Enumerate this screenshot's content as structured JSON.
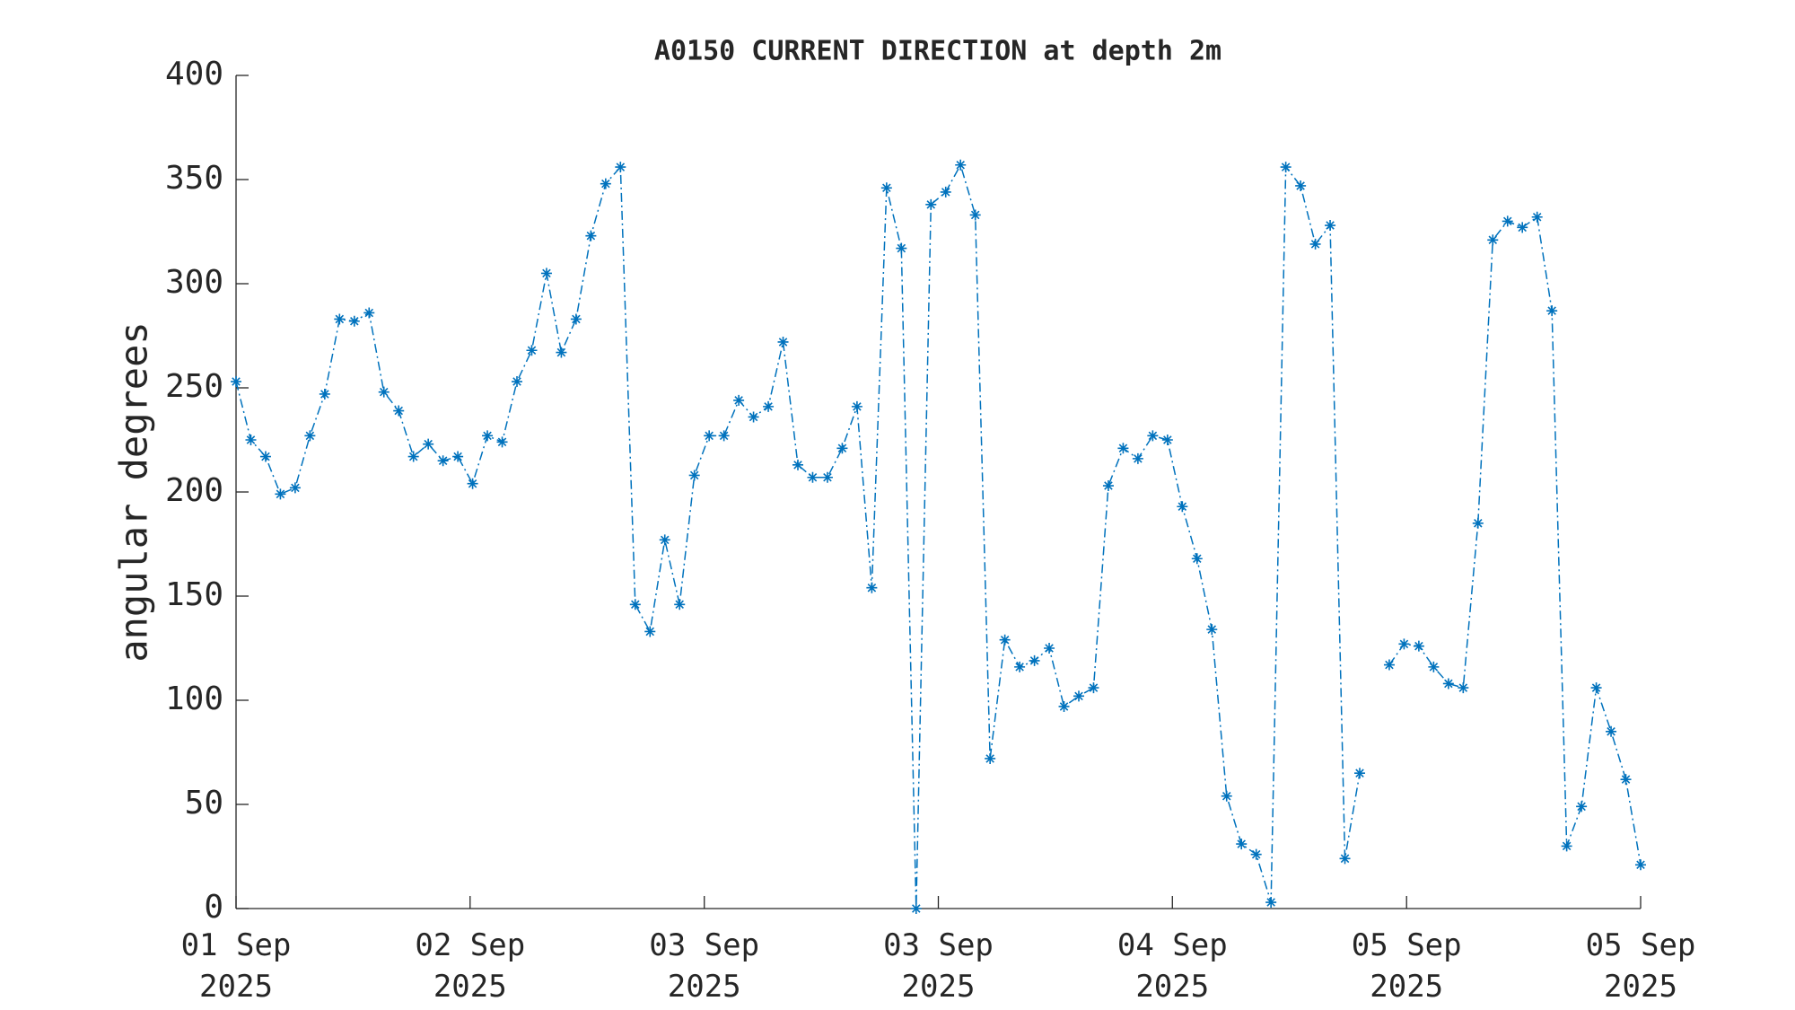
{
  "chart_data": {
    "type": "line",
    "title": "A0150 CURRENT DIRECTION at depth 2m",
    "ylabel": "angular degrees",
    "series": [
      {
        "color": "#0072BD",
        "values": [
          253,
          225,
          217,
          199,
          202,
          227,
          247,
          283,
          282,
          286,
          248,
          239,
          217,
          223,
          215,
          217,
          204,
          227,
          224,
          253,
          268,
          305,
          267,
          283,
          323,
          348,
          356,
          146,
          133,
          177,
          146,
          208,
          227,
          227,
          244,
          236,
          241,
          272,
          213,
          207,
          207,
          221,
          241,
          154,
          346,
          317,
          0,
          338,
          344,
          357,
          333,
          72,
          129,
          116,
          119,
          125,
          97,
          102,
          106,
          203,
          221,
          216,
          227,
          225,
          193,
          168,
          134,
          54,
          31,
          26,
          3,
          356,
          347,
          319,
          328,
          24,
          65,
          null,
          117,
          127,
          126,
          116,
          108,
          106,
          185,
          321,
          330,
          327,
          332,
          287,
          30,
          49,
          106,
          85,
          62,
          21
        ]
      }
    ],
    "xlim": [
      0,
      95
    ],
    "xticks": [
      {
        "value": 0,
        "label": "01 Sep 2025"
      },
      {
        "value": 15.83,
        "label": "02 Sep 2025"
      },
      {
        "value": 31.67,
        "label": "03 Sep 2025"
      },
      {
        "value": 47.5,
        "label": "03 Sep 2025"
      },
      {
        "value": 63.33,
        "label": "04 Sep 2025"
      },
      {
        "value": 79.17,
        "label": "05 Sep 2025"
      },
      {
        "value": 95,
        "label": "05 Sep 2025"
      }
    ],
    "ylim": [
      0,
      400
    ],
    "yticks": [
      0,
      50,
      100,
      150,
      200,
      250,
      300,
      350,
      400
    ]
  }
}
